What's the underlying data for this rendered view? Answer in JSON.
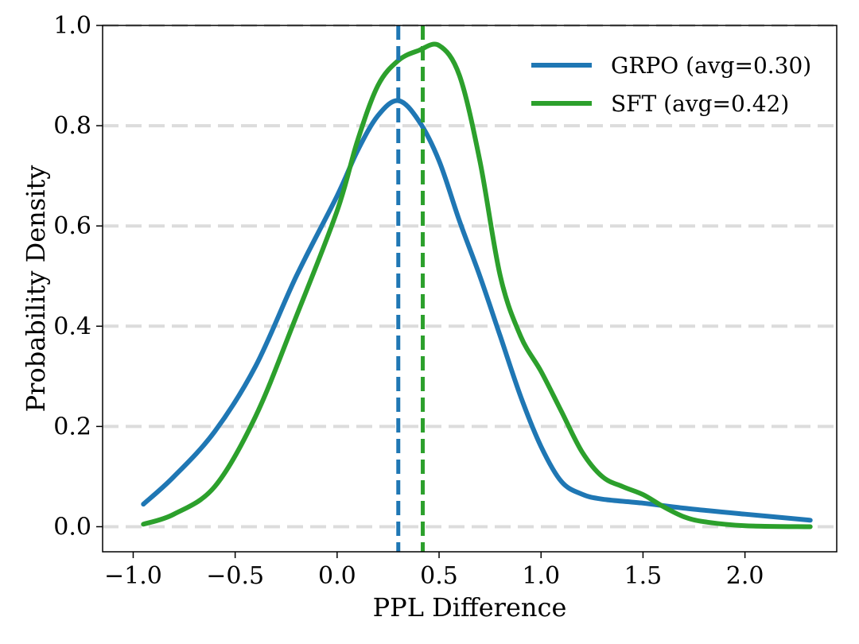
{
  "chart_data": {
    "type": "line",
    "title": "",
    "xlabel": "PPL Difference",
    "ylabel": "Probability Density",
    "xlim": [
      -1.15,
      2.45
    ],
    "ylim": [
      -0.05,
      1.0
    ],
    "xticks": [
      -1.0,
      -0.5,
      0.0,
      0.5,
      1.0,
      1.5,
      2.0
    ],
    "xtick_labels": [
      "−1.0",
      "−0.5",
      "0.0",
      "0.5",
      "1.0",
      "1.5",
      "2.0"
    ],
    "yticks": [
      0.0,
      0.2,
      0.4,
      0.6,
      0.8,
      1.0
    ],
    "ytick_labels": [
      "0.0",
      "0.2",
      "0.4",
      "0.6",
      "0.8",
      "1.0"
    ],
    "grid": "horizontal dashed",
    "legend_position": "top-right",
    "series": [
      {
        "name": "GRPO (avg=0.30)",
        "color": "#1f77b4",
        "avg": 0.3,
        "x": [
          -0.95,
          -0.8,
          -0.6,
          -0.4,
          -0.2,
          0.0,
          0.1,
          0.2,
          0.3,
          0.4,
          0.5,
          0.6,
          0.7,
          0.8,
          0.9,
          1.0,
          1.1,
          1.2,
          1.3,
          1.5,
          1.7,
          2.0,
          2.32
        ],
        "y": [
          0.045,
          0.1,
          0.19,
          0.32,
          0.5,
          0.66,
          0.75,
          0.82,
          0.85,
          0.81,
          0.73,
          0.61,
          0.5,
          0.38,
          0.26,
          0.16,
          0.09,
          0.065,
          0.055,
          0.047,
          0.037,
          0.025,
          0.013
        ]
      },
      {
        "name": "SFT  (avg=0.42)",
        "color": "#2ca02c",
        "avg": 0.42,
        "x": [
          -0.95,
          -0.8,
          -0.6,
          -0.4,
          -0.2,
          0.0,
          0.1,
          0.2,
          0.3,
          0.4,
          0.5,
          0.6,
          0.7,
          0.8,
          0.9,
          1.0,
          1.1,
          1.2,
          1.3,
          1.4,
          1.5,
          1.6,
          1.7,
          1.8,
          2.0,
          2.32
        ],
        "y": [
          0.005,
          0.025,
          0.08,
          0.22,
          0.42,
          0.63,
          0.77,
          0.88,
          0.93,
          0.95,
          0.96,
          0.9,
          0.73,
          0.5,
          0.38,
          0.31,
          0.23,
          0.15,
          0.1,
          0.08,
          0.064,
          0.04,
          0.02,
          0.01,
          0.002,
          0.0
        ]
      }
    ]
  }
}
